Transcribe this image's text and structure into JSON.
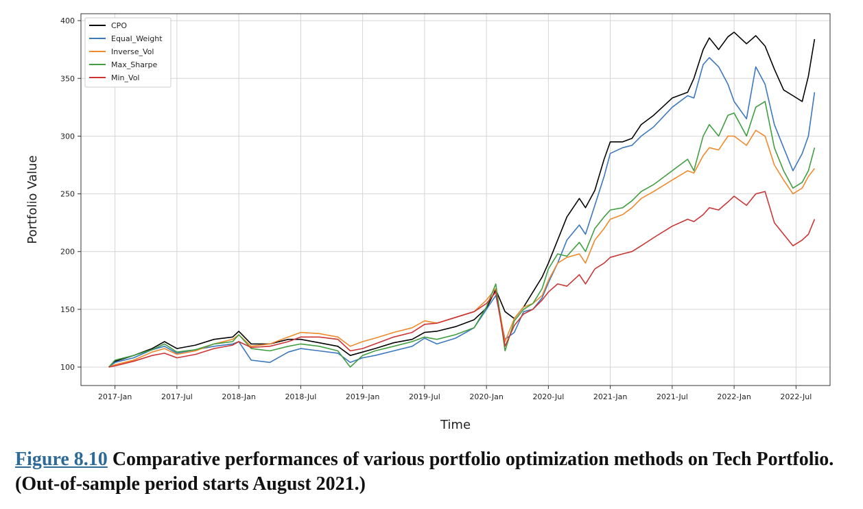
{
  "chart_data": {
    "type": "line",
    "title": "",
    "xlabel": "Time",
    "ylabel": "Portfolio Value",
    "x_tick_labels": [
      "2017-Jan",
      "2017-Jul",
      "2018-Jan",
      "2018-Jul",
      "2019-Jan",
      "2019-Jul",
      "2020-Jan",
      "2020-Jul",
      "2021-Jan",
      "2021-Jul",
      "2022-Jan",
      "2022-Jul"
    ],
    "y_ticks": [
      100,
      150,
      200,
      250,
      300,
      350,
      400
    ],
    "xlim": [
      -0.55,
      11.55
    ],
    "ylim": [
      84,
      406
    ],
    "grid": true,
    "legend_position": "top-left",
    "series": [
      {
        "name": "CPO",
        "color": "#000000",
        "x": [
          -0.1,
          0.0,
          0.3,
          0.6,
          0.8,
          1.0,
          1.3,
          1.6,
          1.9,
          2.0,
          2.2,
          2.5,
          2.8,
          3.0,
          3.3,
          3.6,
          3.8,
          4.0,
          4.2,
          4.5,
          4.8,
          5.0,
          5.2,
          5.5,
          5.8,
          6.0,
          6.15,
          6.3,
          6.45,
          6.6,
          6.75,
          6.9,
          7.0,
          7.15,
          7.3,
          7.5,
          7.6,
          7.75,
          7.9,
          8.0,
          8.2,
          8.35,
          8.5,
          8.7,
          9.0,
          9.25,
          9.35,
          9.5,
          9.6,
          9.75,
          9.9,
          10.0,
          10.2,
          10.35,
          10.5,
          10.65,
          10.8,
          10.95,
          11.1,
          11.2,
          11.3
        ],
        "values": [
          100,
          105,
          110,
          116,
          122,
          116,
          119,
          124,
          126,
          131,
          120,
          120,
          124,
          124,
          121,
          118,
          110,
          113,
          116,
          121,
          124,
          130,
          131,
          135,
          141,
          151,
          167,
          148,
          142,
          152,
          165,
          178,
          190,
          210,
          230,
          246,
          238,
          253,
          280,
          295,
          295,
          298,
          310,
          318,
          333,
          338,
          350,
          375,
          385,
          375,
          386,
          390,
          380,
          387,
          378,
          358,
          340,
          335,
          330,
          352,
          384
        ]
      },
      {
        "name": "Equal_Weight",
        "color": "#3a77c0",
        "x": [
          -0.1,
          0.0,
          0.3,
          0.6,
          0.8,
          1.0,
          1.3,
          1.6,
          1.9,
          2.0,
          2.2,
          2.5,
          2.8,
          3.0,
          3.3,
          3.6,
          3.8,
          4.0,
          4.2,
          4.5,
          4.8,
          5.0,
          5.2,
          5.5,
          5.8,
          6.0,
          6.15,
          6.3,
          6.45,
          6.6,
          6.75,
          6.9,
          7.0,
          7.15,
          7.3,
          7.5,
          7.6,
          7.75,
          7.9,
          8.0,
          8.2,
          8.35,
          8.5,
          8.7,
          9.0,
          9.25,
          9.35,
          9.5,
          9.6,
          9.75,
          9.9,
          10.0,
          10.2,
          10.35,
          10.5,
          10.65,
          10.8,
          10.95,
          11.1,
          11.2,
          11.3
        ],
        "values": [
          100,
          104,
          108,
          115,
          118,
          112,
          115,
          118,
          120,
          122,
          106,
          104,
          113,
          116,
          114,
          112,
          104,
          108,
          110,
          114,
          118,
          125,
          120,
          125,
          134,
          150,
          162,
          124,
          130,
          148,
          150,
          160,
          173,
          190,
          210,
          223,
          215,
          240,
          265,
          285,
          290,
          292,
          300,
          308,
          325,
          335,
          333,
          362,
          368,
          360,
          345,
          330,
          315,
          360,
          345,
          310,
          290,
          270,
          285,
          300,
          338
        ]
      },
      {
        "name": "Inverse_Vol",
        "color": "#f0892a",
        "x": [
          -0.1,
          0.0,
          0.3,
          0.6,
          0.8,
          1.0,
          1.3,
          1.6,
          1.9,
          2.0,
          2.2,
          2.5,
          2.8,
          3.0,
          3.3,
          3.6,
          3.8,
          4.0,
          4.2,
          4.5,
          4.8,
          5.0,
          5.2,
          5.5,
          5.8,
          6.0,
          6.15,
          6.3,
          6.45,
          6.6,
          6.75,
          6.9,
          7.0,
          7.15,
          7.3,
          7.5,
          7.6,
          7.75,
          7.9,
          8.0,
          8.2,
          8.35,
          8.5,
          8.7,
          9.0,
          9.25,
          9.35,
          9.5,
          9.6,
          9.75,
          9.9,
          10.0,
          10.2,
          10.35,
          10.5,
          10.65,
          10.8,
          10.95,
          11.1,
          11.2,
          11.3
        ],
        "values": [
          100,
          102,
          106,
          113,
          116,
          111,
          114,
          120,
          124,
          128,
          118,
          120,
          126,
          130,
          129,
          126,
          118,
          122,
          125,
          130,
          134,
          140,
          138,
          143,
          148,
          158,
          168,
          122,
          142,
          152,
          155,
          162,
          175,
          190,
          195,
          198,
          190,
          210,
          220,
          228,
          232,
          238,
          246,
          252,
          262,
          270,
          268,
          283,
          290,
          288,
          300,
          300,
          292,
          305,
          300,
          275,
          262,
          250,
          255,
          265,
          272
        ]
      },
      {
        "name": "Max_Sharpe",
        "color": "#3f9e3f",
        "x": [
          -0.1,
          0.0,
          0.3,
          0.6,
          0.8,
          1.0,
          1.3,
          1.6,
          1.9,
          2.0,
          2.2,
          2.5,
          2.8,
          3.0,
          3.3,
          3.6,
          3.8,
          4.0,
          4.2,
          4.5,
          4.8,
          5.0,
          5.2,
          5.5,
          5.8,
          6.0,
          6.15,
          6.3,
          6.45,
          6.6,
          6.75,
          6.9,
          7.0,
          7.15,
          7.3,
          7.5,
          7.6,
          7.75,
          7.9,
          8.0,
          8.2,
          8.35,
          8.5,
          8.7,
          9.0,
          9.25,
          9.35,
          9.5,
          9.6,
          9.75,
          9.9,
          10.0,
          10.2,
          10.35,
          10.5,
          10.65,
          10.8,
          10.95,
          11.1,
          11.2,
          11.3
        ],
        "values": [
          100,
          106,
          110,
          115,
          120,
          113,
          115,
          120,
          122,
          128,
          116,
          114,
          118,
          120,
          118,
          114,
          100,
          110,
          114,
          118,
          122,
          126,
          124,
          128,
          134,
          152,
          172,
          114,
          140,
          150,
          155,
          168,
          185,
          198,
          196,
          208,
          200,
          220,
          230,
          236,
          238,
          244,
          252,
          258,
          270,
          280,
          270,
          300,
          310,
          300,
          318,
          320,
          300,
          325,
          330,
          290,
          270,
          255,
          260,
          270,
          290
        ]
      },
      {
        "name": "Min_Vol",
        "color": "#cc3333",
        "x": [
          -0.1,
          0.0,
          0.3,
          0.6,
          0.8,
          1.0,
          1.3,
          1.6,
          1.9,
          2.0,
          2.2,
          2.5,
          2.8,
          3.0,
          3.3,
          3.6,
          3.8,
          4.0,
          4.2,
          4.5,
          4.8,
          5.0,
          5.2,
          5.5,
          5.8,
          6.0,
          6.15,
          6.3,
          6.45,
          6.6,
          6.75,
          6.9,
          7.0,
          7.15,
          7.3,
          7.5,
          7.6,
          7.75,
          7.9,
          8.0,
          8.2,
          8.35,
          8.5,
          8.7,
          9.0,
          9.25,
          9.35,
          9.5,
          9.6,
          9.75,
          9.9,
          10.0,
          10.2,
          10.35,
          10.5,
          10.65,
          10.8,
          10.95,
          11.1,
          11.2,
          11.3
        ],
        "values": [
          100,
          101,
          105,
          110,
          112,
          108,
          111,
          116,
          119,
          122,
          117,
          118,
          122,
          126,
          126,
          124,
          114,
          116,
          120,
          126,
          130,
          137,
          138,
          143,
          148,
          155,
          165,
          118,
          136,
          146,
          150,
          158,
          165,
          172,
          170,
          180,
          172,
          185,
          190,
          195,
          198,
          200,
          205,
          212,
          222,
          228,
          226,
          232,
          238,
          236,
          243,
          248,
          240,
          250,
          252,
          225,
          215,
          205,
          210,
          215,
          228
        ]
      }
    ]
  },
  "caption": {
    "ref": "Figure 8.10",
    "text": " Comparative performances of various portfolio optimization methods on Tech Portfolio. (Out-of-sample period starts August 2021.)"
  }
}
